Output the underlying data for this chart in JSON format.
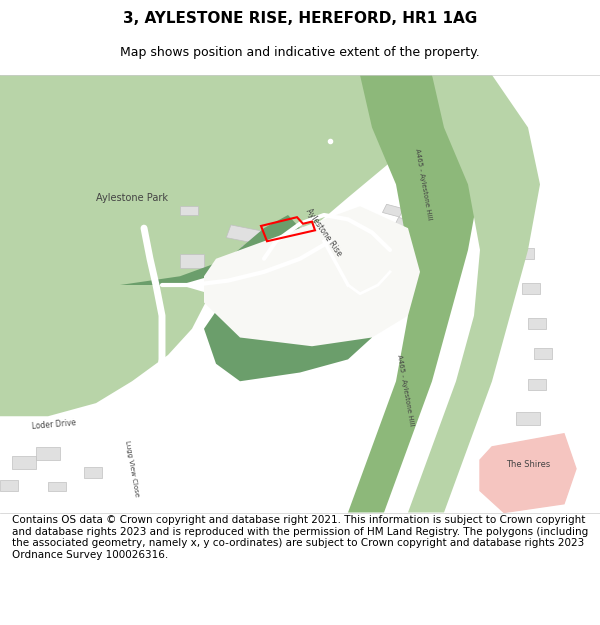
{
  "title": "3, AYLESTONE RISE, HEREFORD, HR1 1AG",
  "subtitle": "Map shows position and indicative extent of the property.",
  "footer": "Contains OS data © Crown copyright and database right 2021. This information is subject to Crown copyright and database rights 2023 and is reproduced with the permission of HM Land Registry. The polygons (including the associated geometry, namely x, y co-ordinates) are subject to Crown copyright and database rights 2023 Ordnance Survey 100026316.",
  "bg_color": "#f5f5f0",
  "map_bg": "#ffffff",
  "green_light": "#b8d4a8",
  "green_dark": "#6b9e6b",
  "green_medium": "#8db87a",
  "road_color": "#b8d4a8",
  "road_edge": "#7aaa7a",
  "building_color": "#e8e8e8",
  "building_edge": "#cccccc",
  "red_polygon": "#ff0000",
  "pink_area": "#f5c5c0",
  "title_fontsize": 11,
  "subtitle_fontsize": 9,
  "footer_fontsize": 7.5
}
